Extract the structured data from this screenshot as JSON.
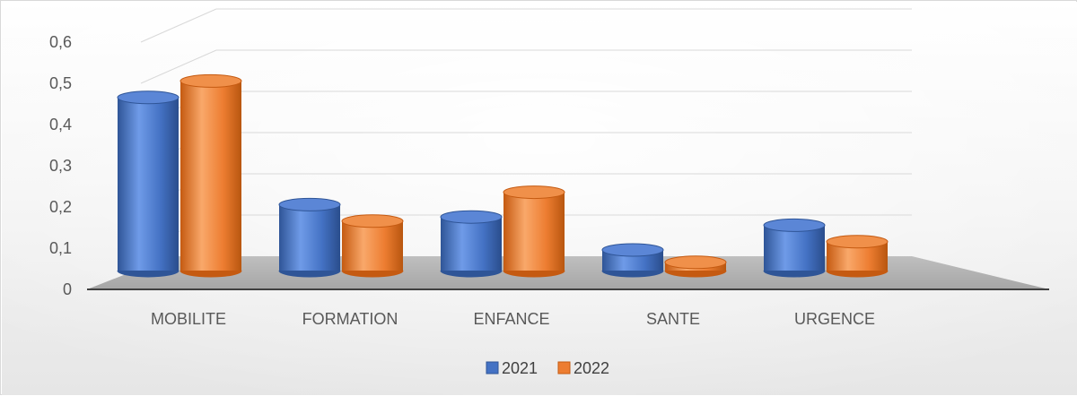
{
  "chart_data": {
    "type": "bar",
    "style": "3d-cylinder",
    "categories": [
      "MOBILITE",
      "FORMATION",
      "ENFANCE",
      "SANTE",
      "URGENCE"
    ],
    "series": [
      {
        "name": "2021",
        "values": [
          0.42,
          0.16,
          0.13,
          0.05,
          0.11
        ],
        "color": "#4472C4"
      },
      {
        "name": "2022",
        "values": [
          0.46,
          0.12,
          0.19,
          0.02,
          0.07
        ],
        "color": "#ED7D31"
      }
    ],
    "yticks": [
      "0",
      "0,1",
      "0,2",
      "0,3",
      "0,4",
      "0,5",
      "0,6"
    ],
    "ylim": [
      0,
      0.6
    ],
    "grid": true,
    "legend_position": "bottom"
  }
}
